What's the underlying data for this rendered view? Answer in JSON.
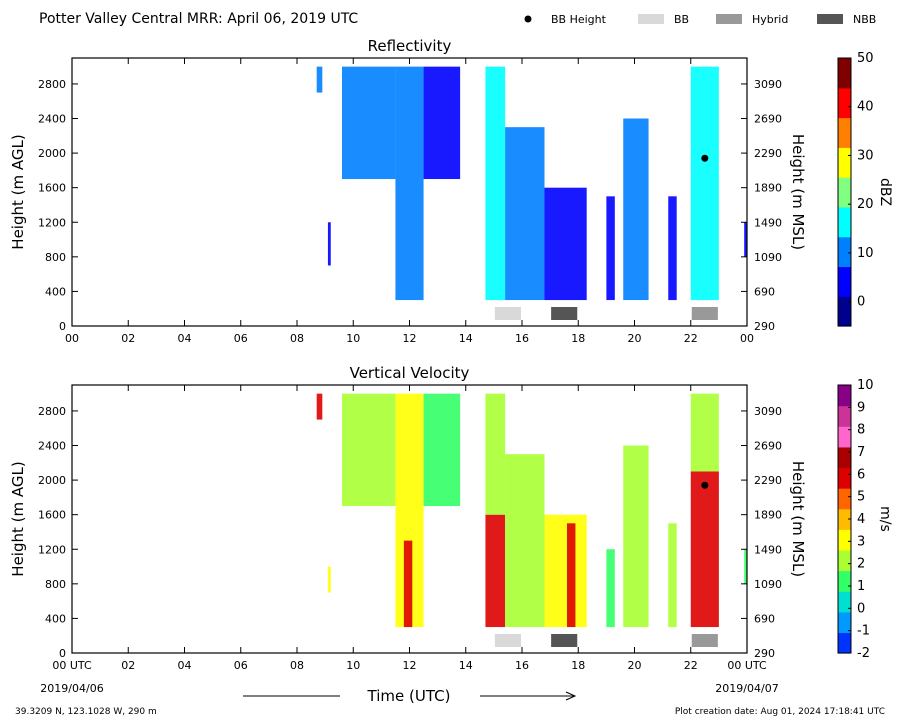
{
  "header": {
    "title": "Potter Valley Central MRR:  April 06, 2019 UTC",
    "legend": [
      {
        "label": "BB Height",
        "kind": "dot",
        "color": "#000000"
      },
      {
        "label": "BB",
        "kind": "swatch",
        "color": "#d9d9d9"
      },
      {
        "label": "Hybrid",
        "kind": "swatch",
        "color": "#999999"
      },
      {
        "label": "NBB",
        "kind": "swatch",
        "color": "#555555"
      }
    ]
  },
  "footer": {
    "location": "39.3209 N, 123.1028 W, 290 m",
    "creation_date": "Plot creation date: Aug 01, 2024 17:18:41 UTC",
    "start_date": "2019/04/06",
    "end_date": "2019/04/07",
    "xlabel": "Time (UTC)"
  },
  "chart_data": [
    {
      "type": "heatmap",
      "title": "Reflectivity",
      "ylabel": "Height (m AGL)",
      "ylabel_right": "Height (m MSL)",
      "xlim": [
        0,
        24
      ],
      "ylim": [
        0,
        3100
      ],
      "xticks": [
        "00",
        "02",
        "04",
        "06",
        "08",
        "10",
        "12",
        "14",
        "16",
        "18",
        "20",
        "22",
        "00"
      ],
      "yticks_left": [
        "0",
        "400",
        "800",
        "1200",
        "1600",
        "2000",
        "2400",
        "2800"
      ],
      "yticks_right": [
        "290",
        "690",
        "1090",
        "1490",
        "1890",
        "2290",
        "2690",
        "3090"
      ],
      "colorbar": {
        "label": "dBZ",
        "range": [
          -5,
          50
        ],
        "ticks": [
          "0",
          "10",
          "20",
          "30",
          "40",
          "50"
        ],
        "tick_values": [
          0,
          10,
          20,
          30,
          40,
          50
        ],
        "colormap": [
          "#00008f",
          "#0000ff",
          "#0080ff",
          "#00ffff",
          "#80ff80",
          "#ffff00",
          "#ff8000",
          "#ff0000",
          "#800000"
        ]
      },
      "bright_band_height": {
        "time_hours": 22.5,
        "height_m": 1940
      },
      "bright_band_markers": [
        {
          "type": "BB",
          "start_hours": 15.0,
          "end_hours": 16.0
        },
        {
          "type": "NBB",
          "start_hours": 17.0,
          "end_hours": 18.0
        },
        {
          "type": "Hybrid",
          "start_hours": 22.0,
          "end_hours": 23.0
        }
      ],
      "echo_regions": [
        {
          "start_hours": 8.7,
          "end_hours": 8.9,
          "bottom_m": 2700,
          "top_m": 3000,
          "value": 10
        },
        {
          "start_hours": 9.1,
          "end_hours": 9.2,
          "bottom_m": 700,
          "top_m": 1200,
          "value": 6
        },
        {
          "start_hours": 9.6,
          "end_hours": 11.5,
          "bottom_m": 1700,
          "top_m": 3000,
          "value": 8
        },
        {
          "start_hours": 11.5,
          "end_hours": 12.5,
          "bottom_m": 300,
          "top_m": 3000,
          "value": 10
        },
        {
          "start_hours": 12.5,
          "end_hours": 13.8,
          "bottom_m": 1700,
          "top_m": 3000,
          "value": 7
        },
        {
          "start_hours": 14.7,
          "end_hours": 15.4,
          "bottom_m": 300,
          "top_m": 3000,
          "value": 16
        },
        {
          "start_hours": 15.4,
          "end_hours": 16.8,
          "bottom_m": 300,
          "top_m": 2300,
          "value": 11
        },
        {
          "start_hours": 16.8,
          "end_hours": 18.3,
          "bottom_m": 300,
          "top_m": 1600,
          "value": 7
        },
        {
          "start_hours": 19.0,
          "end_hours": 19.3,
          "bottom_m": 300,
          "top_m": 1500,
          "value": 2
        },
        {
          "start_hours": 19.6,
          "end_hours": 20.5,
          "bottom_m": 300,
          "top_m": 2400,
          "value": 13
        },
        {
          "start_hours": 21.2,
          "end_hours": 21.5,
          "bottom_m": 300,
          "top_m": 1500,
          "value": 4
        },
        {
          "start_hours": 22.0,
          "end_hours": 23.0,
          "bottom_m": 300,
          "top_m": 3000,
          "value": 18
        },
        {
          "start_hours": 23.9,
          "end_hours": 24.0,
          "bottom_m": 800,
          "top_m": 1200,
          "value": 3
        }
      ]
    },
    {
      "type": "heatmap",
      "title": "Vertical Velocity",
      "ylabel": "Height (m AGL)",
      "ylabel_right": "Height (m MSL)",
      "xlim": [
        0,
        24
      ],
      "ylim": [
        0,
        3100
      ],
      "xticks": [
        "00 UTC",
        "02",
        "04",
        "06",
        "08",
        "10",
        "12",
        "14",
        "16",
        "18",
        "20",
        "22",
        "00 UTC"
      ],
      "yticks_left": [
        "0",
        "400",
        "800",
        "1200",
        "1600",
        "2000",
        "2400",
        "2800"
      ],
      "yticks_right": [
        "290",
        "690",
        "1090",
        "1490",
        "1890",
        "2290",
        "2690",
        "3090"
      ],
      "colorbar": {
        "label": "m/s",
        "range": [
          -2,
          10
        ],
        "ticks": [
          "-2",
          "-1",
          "0",
          "1",
          "2",
          "3",
          "4",
          "5",
          "6",
          "7",
          "8",
          "9",
          "10"
        ],
        "tick_values": [
          -2,
          -1,
          0,
          1,
          2,
          3,
          4,
          5,
          6,
          7,
          8,
          9,
          10
        ],
        "colormap": [
          "#0033ff",
          "#0099ff",
          "#00e0d0",
          "#33ff66",
          "#aaff33",
          "#ffff00",
          "#ffbb00",
          "#ff6600",
          "#dd0000",
          "#aa0000",
          "#ff66cc",
          "#cc3399",
          "#880088"
        ]
      },
      "bright_band_height": {
        "time_hours": 22.5,
        "height_m": 1940
      },
      "bright_band_markers": [
        {
          "type": "BB",
          "start_hours": 15.0,
          "end_hours": 16.0
        },
        {
          "type": "NBB",
          "start_hours": 17.0,
          "end_hours": 18.0
        },
        {
          "type": "Hybrid",
          "start_hours": 22.0,
          "end_hours": 23.0
        }
      ],
      "echo_regions": [
        {
          "start_hours": 8.7,
          "end_hours": 8.9,
          "bottom_m": 2700,
          "top_m": 3000,
          "value": 6
        },
        {
          "start_hours": 9.1,
          "end_hours": 9.2,
          "bottom_m": 700,
          "top_m": 1000,
          "value": 2.8
        },
        {
          "start_hours": 9.6,
          "end_hours": 11.5,
          "bottom_m": 1700,
          "top_m": 3000,
          "value": 1.8
        },
        {
          "start_hours": 11.5,
          "end_hours": 12.5,
          "bottom_m": 300,
          "top_m": 3000,
          "value": 2.8
        },
        {
          "start_hours": 11.8,
          "end_hours": 12.1,
          "bottom_m": 300,
          "top_m": 1300,
          "value": 5.5
        },
        {
          "start_hours": 12.5,
          "end_hours": 13.8,
          "bottom_m": 1700,
          "top_m": 3000,
          "value": 1.5
        },
        {
          "start_hours": 14.7,
          "end_hours": 15.4,
          "bottom_m": 300,
          "top_m": 1600,
          "value": 5.5
        },
        {
          "start_hours": 14.7,
          "end_hours": 15.4,
          "bottom_m": 1600,
          "top_m": 3000,
          "value": 2
        },
        {
          "start_hours": 15.4,
          "end_hours": 16.8,
          "bottom_m": 300,
          "top_m": 2300,
          "value": 2.5
        },
        {
          "start_hours": 16.8,
          "end_hours": 18.3,
          "bottom_m": 300,
          "top_m": 1600,
          "value": 3
        },
        {
          "start_hours": 17.6,
          "end_hours": 17.9,
          "bottom_m": 300,
          "top_m": 1500,
          "value": 5.5
        },
        {
          "start_hours": 19.0,
          "end_hours": 19.3,
          "bottom_m": 300,
          "top_m": 1200,
          "value": 1.5
        },
        {
          "start_hours": 19.6,
          "end_hours": 20.5,
          "bottom_m": 300,
          "top_m": 2400,
          "value": 2.2
        },
        {
          "start_hours": 21.2,
          "end_hours": 21.5,
          "bottom_m": 300,
          "top_m": 1500,
          "value": 2.5
        },
        {
          "start_hours": 22.0,
          "end_hours": 23.0,
          "bottom_m": 300,
          "top_m": 2100,
          "value": 5.5
        },
        {
          "start_hours": 22.0,
          "end_hours": 23.0,
          "bottom_m": 2100,
          "top_m": 3000,
          "value": 1.8
        },
        {
          "start_hours": 23.9,
          "end_hours": 24.0,
          "bottom_m": 800,
          "top_m": 1200,
          "value": 1.5
        }
      ]
    }
  ]
}
